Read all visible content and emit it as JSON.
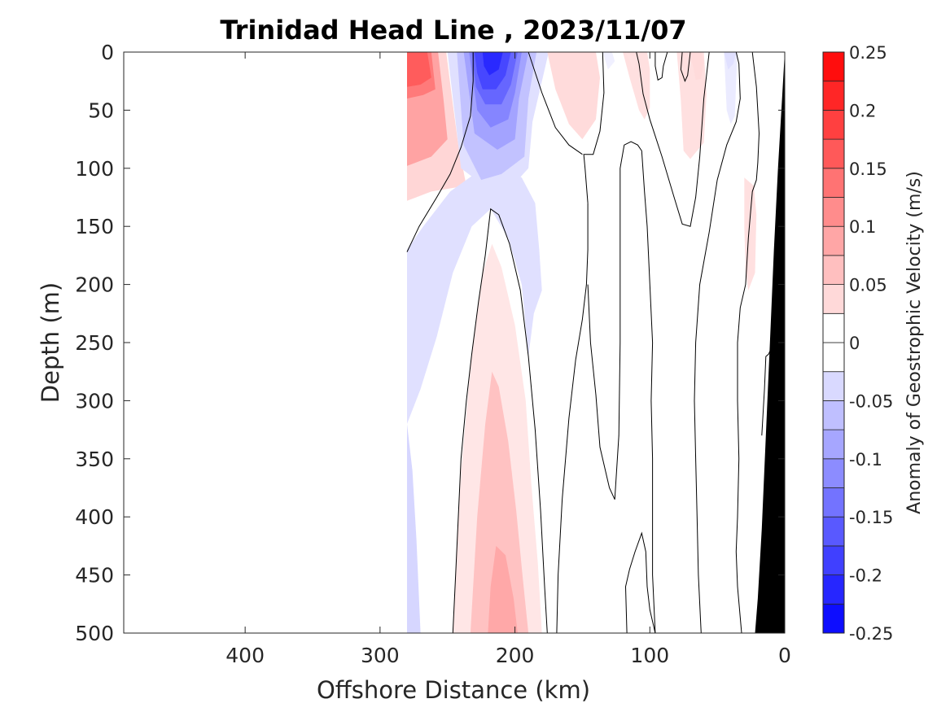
{
  "chart_data": {
    "type": "heatmap",
    "subtype": "filled-contour section",
    "title": "Trinidad Head Line , 2023/11/07",
    "xlabel": "Offshore Distance (km)",
    "ylabel": "Depth (m)",
    "xlim": [
      490,
      0
    ],
    "x_reversed": true,
    "ylim": [
      0,
      500
    ],
    "y_reversed": true,
    "x_ticks": [
      400,
      300,
      200,
      100,
      0
    ],
    "y_ticks": [
      0,
      50,
      100,
      150,
      200,
      250,
      300,
      350,
      400,
      450,
      500
    ],
    "colorbar": {
      "label": "Anomaly of Geostrophic Velocity (m/s)",
      "range": [
        -0.25,
        0.25
      ],
      "levels": [
        -0.25,
        -0.225,
        -0.2,
        -0.175,
        -0.15,
        -0.125,
        -0.1,
        -0.075,
        -0.05,
        -0.025,
        0,
        0.025,
        0.05,
        0.075,
        0.1,
        0.125,
        0.15,
        0.175,
        0.2,
        0.225,
        0.25
      ],
      "tick_values": [
        -0.25,
        -0.2,
        -0.15,
        -0.1,
        -0.05,
        0,
        0.05,
        0.1,
        0.15,
        0.2,
        0.25
      ],
      "tick_labels": [
        "-0.25",
        "-0.2",
        "-0.15",
        "-0.1",
        "-0.05",
        "0",
        "0.05",
        "0.1",
        "0.15",
        "0.2",
        "0.25"
      ],
      "colormap": "blue-white-red"
    },
    "data_coverage_km": [
      280,
      0
    ],
    "features": [
      {
        "name": "surface-positive-core",
        "x_range": [
          280,
          245
        ],
        "depth_range": [
          0,
          175
        ],
        "peak": 0.175
      },
      {
        "name": "surface-negative-core",
        "x_range": [
          245,
          180
        ],
        "depth_range": [
          0,
          230
        ],
        "peak": -0.2
      },
      {
        "name": "subsurface-positive-core",
        "x_range": [
          245,
          180
        ],
        "depth_range": [
          135,
          500
        ],
        "peak": 0.075
      },
      {
        "name": "nearshore-weak-positive",
        "x_range": [
          175,
          60
        ],
        "depth_range": [
          0,
          95
        ],
        "peak": 0.05
      },
      {
        "name": "nearshore-weak-negative",
        "x_range": [
          45,
          35
        ],
        "depth_range": [
          0,
          70
        ],
        "peak": -0.025
      },
      {
        "name": "slope-positive",
        "x_range": [
          30,
          20
        ],
        "depth_range": [
          105,
          205
        ],
        "peak": 0.025
      },
      {
        "name": "deep-offshore-negative",
        "x_range": [
          280,
          270
        ],
        "depth_range": [
          320,
          500
        ],
        "peak": -0.05
      }
    ],
    "bathymetry_color": "#000000",
    "grid": false,
    "colors": {
      "neg_strong": "#0000ff",
      "pos_strong": "#ff0000",
      "neutral": "#ffffff"
    }
  }
}
